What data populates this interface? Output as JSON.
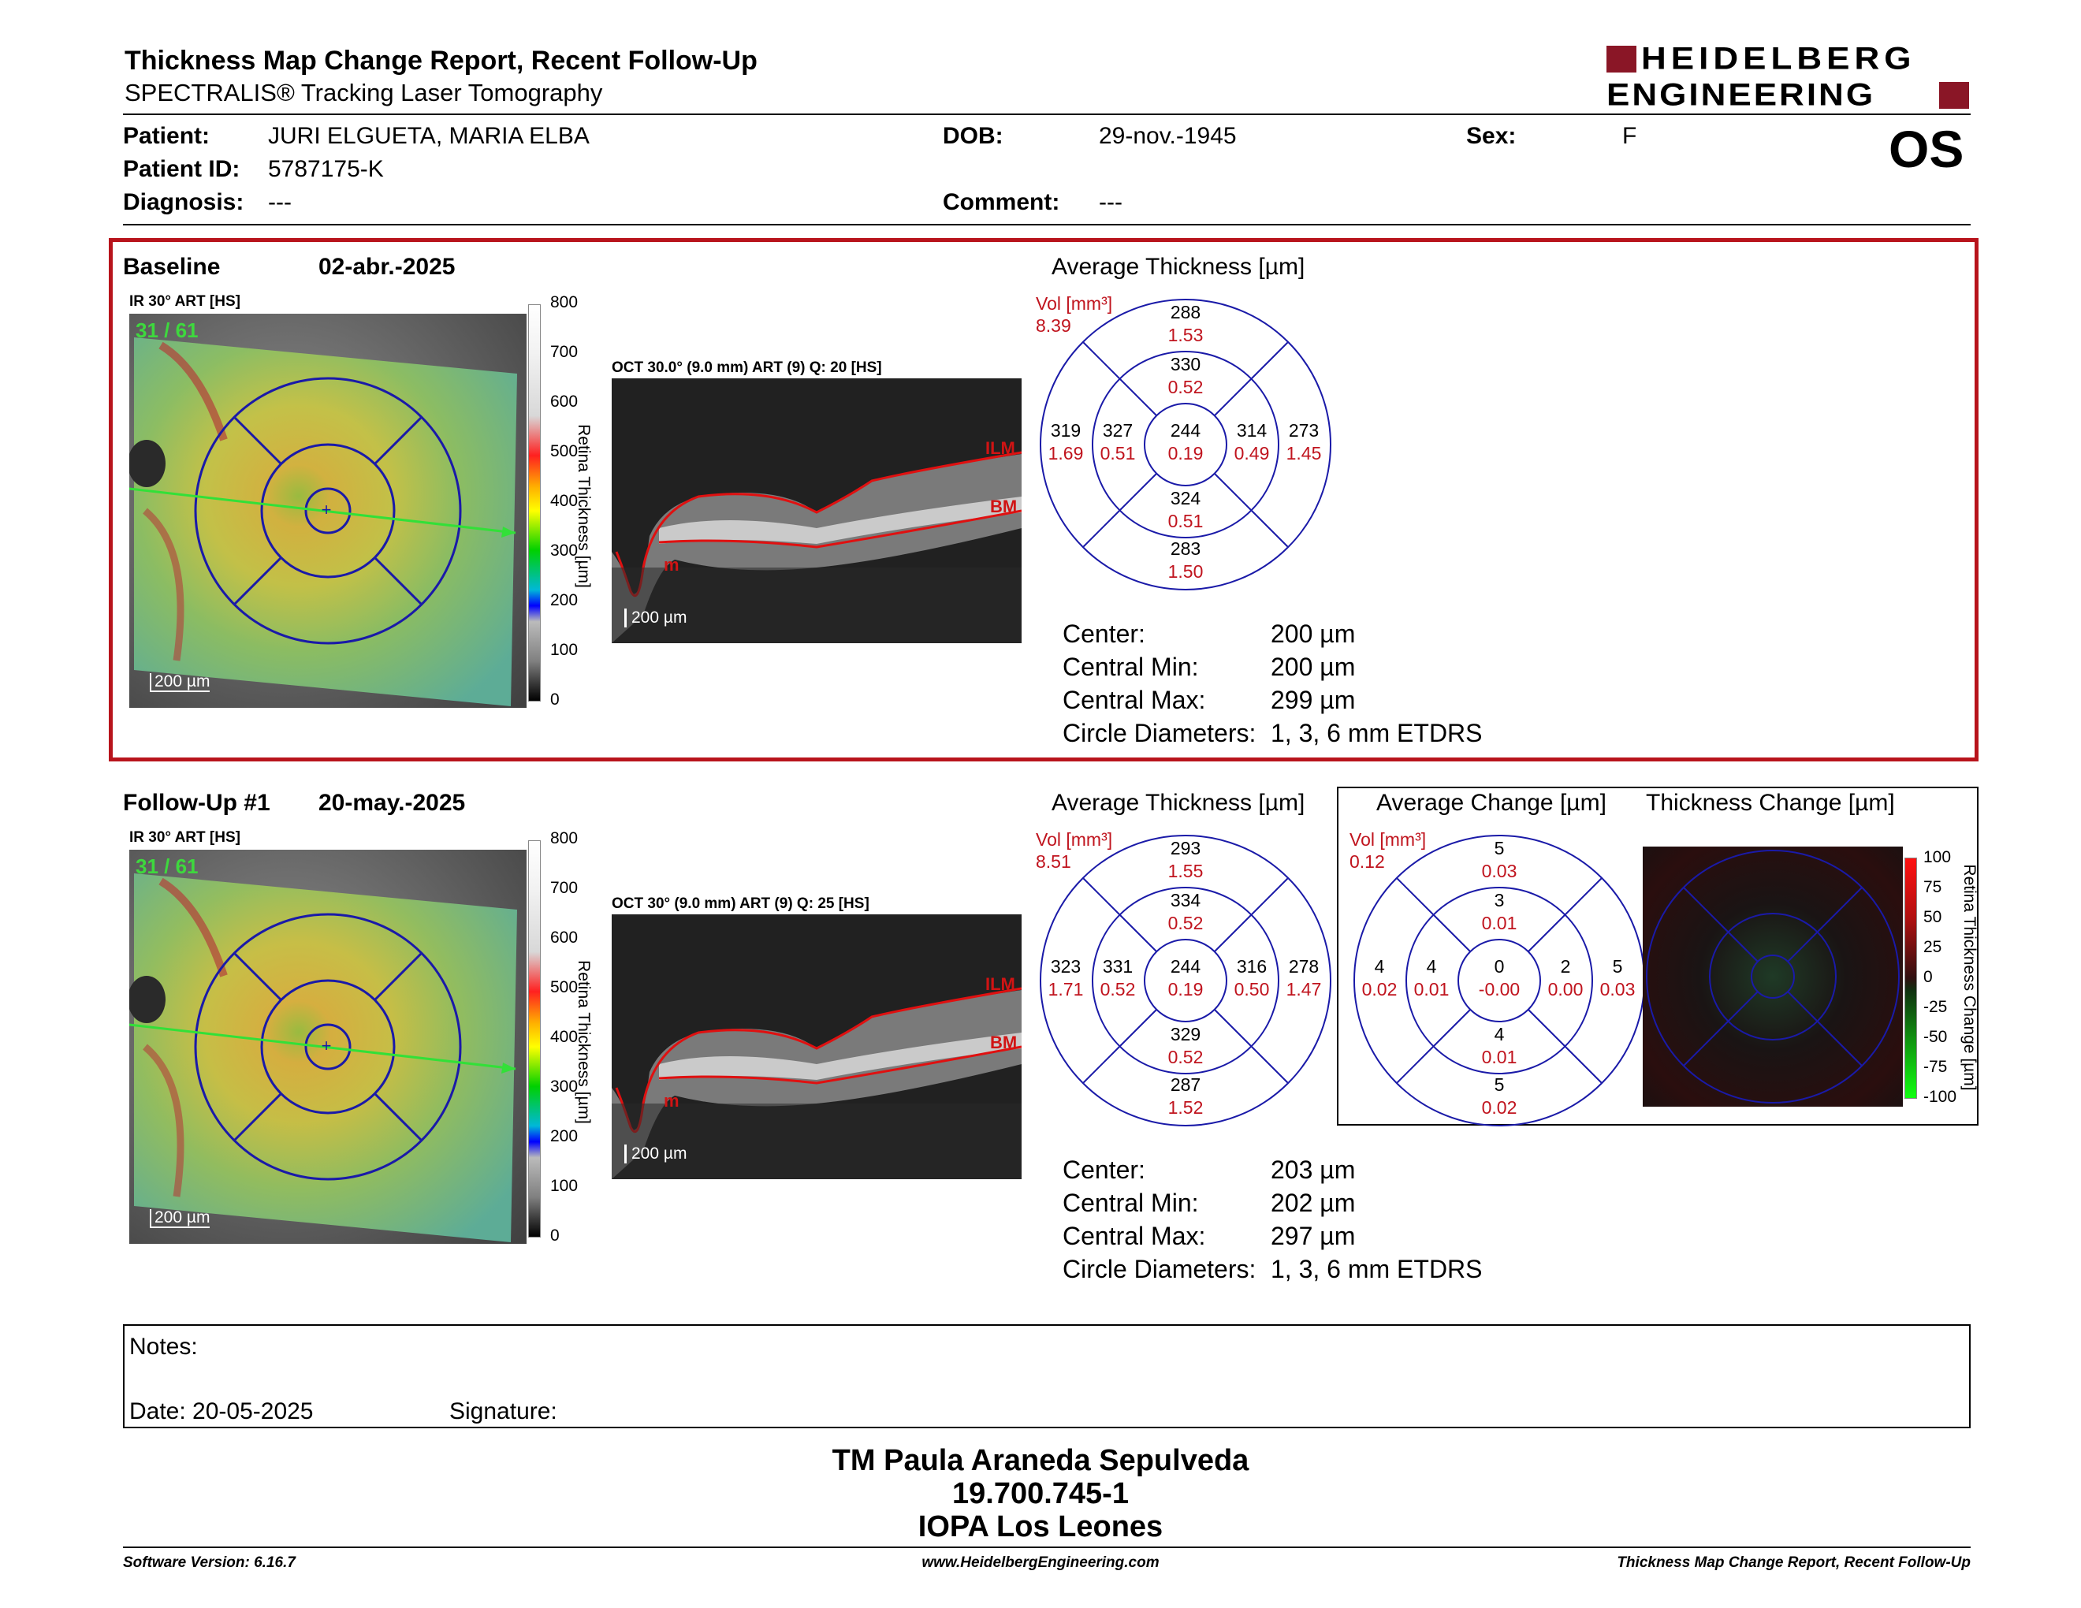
{
  "header": {
    "title": "Thickness Map Change Report, Recent Follow-Up",
    "subtitle": "SPECTRALIS® Tracking Laser Tomography",
    "logo_line1": "HEIDELBERG",
    "logo_line2": "ENGINEERING",
    "eye": "OS"
  },
  "patient": {
    "patient_label": "Patient:",
    "patient_value": "JURI ELGUETA, MARIA ELBA",
    "id_label": "Patient ID:",
    "id_value": "5787175-K",
    "diagnosis_label": "Diagnosis:",
    "diagnosis_value": "---",
    "dob_label": "DOB:",
    "dob_value": "29-nov.-1945",
    "comment_label": "Comment:",
    "comment_value": "---",
    "sex_label": "Sex:",
    "sex_value": "F"
  },
  "baseline": {
    "label": "Baseline",
    "date": "02-abr.-2025",
    "ir_label": "IR 30° ART [HS]",
    "frame_counter": "31 / 61",
    "scale": "200 µm",
    "oct_label": "OCT 30.0° (9.0 mm) ART (9) Q: 20 [HS]",
    "oct_scale": "200 µm",
    "ilm": "ILM",
    "bm": "BM",
    "m": "m",
    "avg_title": "Average Thickness [µm]",
    "vol_label": "Vol [mm³]",
    "vol_value": "8.39",
    "sectors": {
      "outer_sup": [
        "288",
        "1.53"
      ],
      "inner_sup": [
        "330",
        "0.52"
      ],
      "outer_temp": [
        "319",
        "1.69"
      ],
      "inner_temp": [
        "327",
        "0.51"
      ],
      "center": [
        "244",
        "0.19"
      ],
      "inner_nas": [
        "314",
        "0.49"
      ],
      "outer_nas": [
        "273",
        "1.45"
      ],
      "inner_inf": [
        "324",
        "0.51"
      ],
      "outer_inf": [
        "283",
        "1.50"
      ]
    },
    "stats": {
      "center_label": "Center:",
      "center_value": "200 µm",
      "min_label": "Central Min:",
      "min_value": "200 µm",
      "max_label": "Central Max:",
      "max_value": "299 µm",
      "diam_label": "Circle Diameters:",
      "diam_value": "1, 3, 6 mm ETDRS"
    }
  },
  "followup": {
    "label": "Follow-Up #1",
    "date": "20-may.-2025",
    "ir_label": "IR 30° ART [HS]",
    "frame_counter": "31 / 61",
    "scale": "200 µm",
    "oct_label": "OCT 30° (9.0 mm) ART (9) Q: 25 [HS]",
    "oct_scale": "200 µm",
    "ilm": "ILM",
    "bm": "BM",
    "m": "m",
    "avg_title": "Average Thickness [µm]",
    "vol_label": "Vol [mm³]",
    "vol_value": "8.51",
    "sectors": {
      "outer_sup": [
        "293",
        "1.55"
      ],
      "inner_sup": [
        "334",
        "0.52"
      ],
      "outer_temp": [
        "323",
        "1.71"
      ],
      "inner_temp": [
        "331",
        "0.52"
      ],
      "center": [
        "244",
        "0.19"
      ],
      "inner_nas": [
        "316",
        "0.50"
      ],
      "outer_nas": [
        "278",
        "1.47"
      ],
      "inner_inf": [
        "329",
        "0.52"
      ],
      "outer_inf": [
        "287",
        "1.52"
      ]
    },
    "stats": {
      "center_label": "Center:",
      "center_value": "203 µm",
      "min_label": "Central Min:",
      "min_value": "202 µm",
      "max_label": "Central Max:",
      "max_value": "297 µm",
      "diam_label": "Circle Diameters:",
      "diam_value": "1, 3, 6 mm ETDRS"
    },
    "change": {
      "avg_change_title": "Average Change [µm]",
      "thickness_change_title": "Thickness Change [µm]",
      "vol_label": "Vol [mm³]",
      "vol_value": "0.12",
      "sectors": {
        "outer_sup": [
          "5",
          "0.03"
        ],
        "inner_sup": [
          "3",
          "0.01"
        ],
        "outer_temp": [
          "4",
          "0.02"
        ],
        "inner_temp": [
          "4",
          "0.01"
        ],
        "center": [
          "0",
          "-0.00"
        ],
        "inner_nas": [
          "2",
          "0.00"
        ],
        "outer_nas": [
          "5",
          "0.03"
        ],
        "inner_inf": [
          "4",
          "0.01"
        ],
        "outer_inf": [
          "5",
          "0.02"
        ]
      },
      "colorbar_ticks": [
        "100",
        "75",
        "50",
        "25",
        "0",
        "-25",
        "-50",
        "-75",
        "-100"
      ],
      "colorbar_title": "Retina Thickness Change [µm]"
    }
  },
  "colorbar": {
    "ticks": [
      "800",
      "700",
      "600",
      "500",
      "400",
      "300",
      "200",
      "100",
      "0"
    ],
    "title": "Retina Thickness [µm]"
  },
  "notes": {
    "notes_label": "Notes:",
    "date_label": "Date: 20-05-2025",
    "signature_label": "Signature:"
  },
  "signature_block": {
    "name": "TM Paula Araneda Sepulveda",
    "rut": "19.700.745-1",
    "institution": "IOPA Los Leones"
  },
  "footer": {
    "software": "Software Version: 6.16.7",
    "website": "www.HeidelbergEngineering.com",
    "report": "Thickness Map Change Report, Recent Follow-Up"
  },
  "colors": {
    "frame_red": "#b8141c",
    "etdrs_blue": "#1a1aa8",
    "value_red": "#c0141e"
  }
}
